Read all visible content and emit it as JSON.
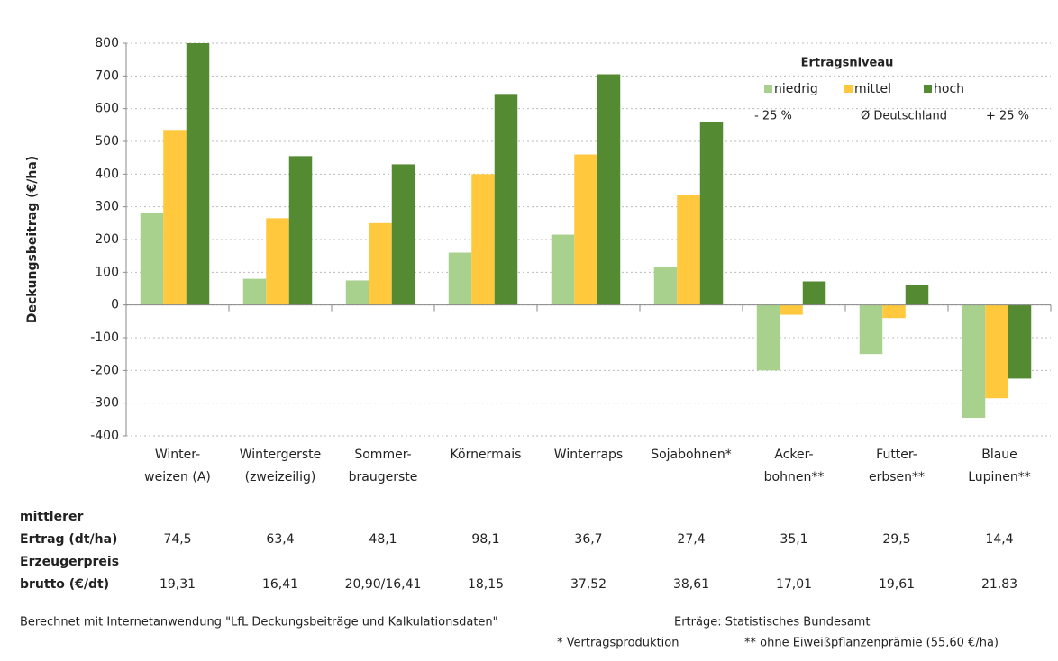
{
  "chart_data": {
    "type": "bar",
    "ylabel": "Deckungsbeitrag (€/ha)",
    "categories": [
      [
        "Winter-",
        "weizen (A)"
      ],
      [
        "Wintergerste",
        "(zweizeilig)"
      ],
      [
        "Sommer-",
        "braugerste"
      ],
      [
        "Körnermais"
      ],
      [
        "Winterraps"
      ],
      [
        "Sojabohnen*"
      ],
      [
        "Acker-",
        "bohnen**"
      ],
      [
        "Futter-",
        "erbsen**"
      ],
      [
        "Blaue",
        "Lupinen**"
      ]
    ],
    "series": [
      {
        "name": "niedrig",
        "sublabel": "- 25 %",
        "color": "#a9d18e",
        "values": [
          280,
          80,
          75,
          160,
          215,
          115,
          -200,
          -150,
          -345
        ]
      },
      {
        "name": "mittel",
        "sublabel": "Ø Deutschland",
        "color": "#ffc83d",
        "values": [
          535,
          265,
          250,
          400,
          460,
          335,
          -30,
          -40,
          -285
        ]
      },
      {
        "name": "hoch",
        "sublabel": "+ 25 %",
        "color": "#538a32",
        "values": [
          800,
          455,
          430,
          645,
          705,
          558,
          72,
          62,
          -225
        ]
      }
    ],
    "legend_title": "Ertragsniveau",
    "ylim": [
      -400,
      800
    ],
    "yticks": [
      -400,
      -300,
      -200,
      -100,
      0,
      100,
      200,
      300,
      400,
      500,
      600,
      700,
      800
    ],
    "grid": true
  },
  "table": {
    "rows": [
      {
        "label": [
          "mittlerer",
          "Ertrag (dt/ha)"
        ],
        "values": [
          "74,5",
          "63,4",
          "48,1",
          "98,1",
          "36,7",
          "27,4",
          "35,1",
          "29,5",
          "14,4"
        ]
      },
      {
        "label": [
          "Erzeugerpreis",
          "brutto (€/dt)"
        ],
        "values": [
          "19,31",
          "16,41",
          "20,90/16,41",
          "18,15",
          "37,52",
          "38,61",
          "17,01",
          "19,61",
          "21,83"
        ]
      }
    ]
  },
  "footer": {
    "source": "Berechnet mit Internetanwendung \"LfL Deckungsbeiträge und Kalkulationsdaten\"",
    "yields": "Erträge: Statistisches Bundesamt",
    "note1": "* Vertragsproduktion",
    "note2": "** ohne Eiweißpflanzenprämie (55,60 €/ha)"
  }
}
